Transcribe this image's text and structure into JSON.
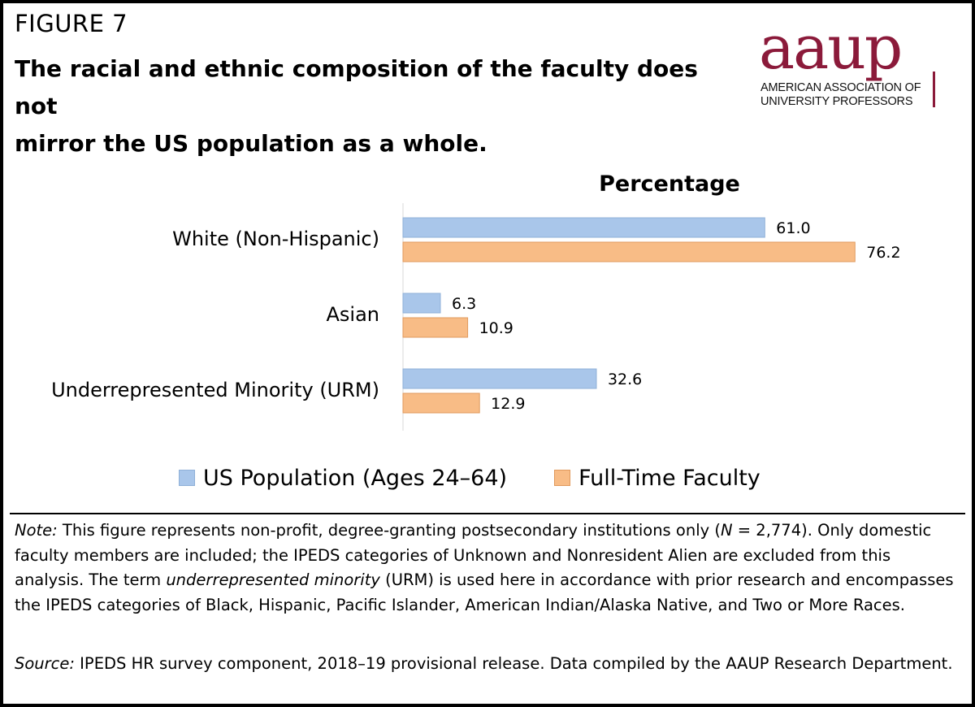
{
  "figure_label": "FIGURE 7",
  "headline": {
    "line1": "The racial and ethnic composition of the faculty does not",
    "line2": "mirror the US population as a whole."
  },
  "logo": {
    "word": "aaup",
    "line1": "AMERICAN ASSOCIATION OF",
    "line2": "UNIVERSITY PROFESSORS",
    "color": "#8b1a3a"
  },
  "chart_data": {
    "type": "bar",
    "orientation": "horizontal",
    "title": "Percentage",
    "categories": [
      "White (Non-Hispanic)",
      "Asian",
      "Underrepresented Minority (URM)"
    ],
    "series": [
      {
        "name": "US Population (Ages 24–64)",
        "values": [
          61.0,
          6.3,
          32.6
        ],
        "labels": [
          "61.0",
          "6.3",
          "32.6"
        ],
        "color": "#a9c6ea",
        "border": "#8fb0d8"
      },
      {
        "name": "Full-Time Faculty",
        "values": [
          76.2,
          10.9,
          12.9
        ],
        "labels": [
          "76.2",
          "10.9",
          "12.9"
        ],
        "color": "#f8bc86",
        "border": "#e09a5d"
      }
    ],
    "xlim": [
      0,
      100
    ],
    "grid": false,
    "legend_position": "bottom"
  },
  "note": {
    "label": "Note:",
    "t1": " This figure represents non-profit, degree-granting postsecondary institutions only (",
    "n_symbol": "N",
    "t2": " = 2,774). Only domestic faculty members are included; the IPEDS categories of Unknown and Nonresident Alien are excluded from this analysis. The term ",
    "term": "underrepresented minority",
    "t3": " (URM) is used here in accordance with prior research and encompasses the IPEDS categories of Black, Hispanic, Pacific Islander, American Indian/Alaska Native, and Two or More Races."
  },
  "source": {
    "label": "Source:",
    "text": " IPEDS HR survey component, 2018–19 provisional release. Data compiled by the AAUP Research Department."
  }
}
